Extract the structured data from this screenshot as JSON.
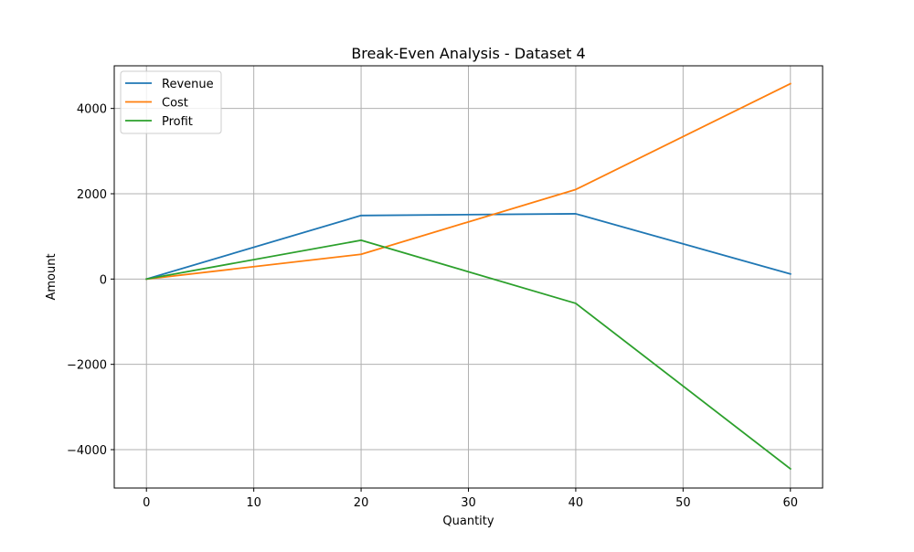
{
  "chart_data": {
    "type": "line",
    "title": "Break-Even Analysis - Dataset 4",
    "xlabel": "Quantity",
    "ylabel": "Amount",
    "x": [
      0,
      20,
      40,
      60
    ],
    "xlim": [
      -3,
      63
    ],
    "ylim": [
      -4900,
      5000
    ],
    "xticks": [
      0,
      10,
      20,
      30,
      40,
      50,
      60
    ],
    "xtick_labels": [
      "0",
      "10",
      "20",
      "30",
      "40",
      "50",
      "60"
    ],
    "yticks": [
      -4000,
      -2000,
      0,
      2000,
      4000
    ],
    "ytick_labels": [
      "−4000",
      "−2000",
      "0",
      "2000",
      "4000"
    ],
    "grid": true,
    "legend_position": "top-left",
    "series": [
      {
        "name": "Revenue",
        "color": "#1f77b4",
        "values": [
          0,
          1490,
          1530,
          120
        ]
      },
      {
        "name": "Cost",
        "color": "#ff7f0e",
        "values": [
          0,
          580,
          2100,
          4580
        ]
      },
      {
        "name": "Profit",
        "color": "#2ca02c",
        "values": [
          0,
          910,
          -570,
          -4450
        ]
      }
    ]
  }
}
